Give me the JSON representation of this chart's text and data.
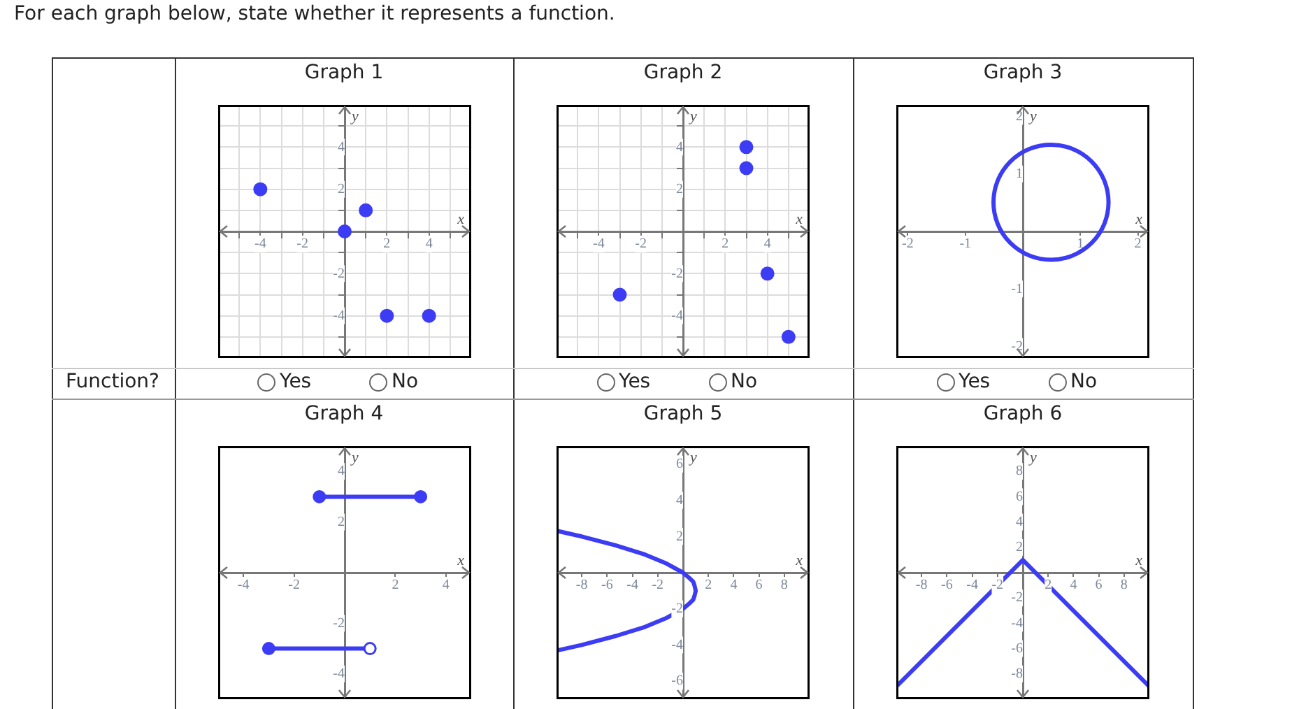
{
  "chart_data": [
    {
      "type": "scatter",
      "title": "Graph 1",
      "xlabel": "x",
      "ylabel": "y",
      "xlim": [
        -6,
        6
      ],
      "ylim": [
        -6,
        6
      ],
      "xticks": [
        {
          "value": -5,
          "label": null
        },
        -4,
        {
          "value": -3,
          "label": null
        },
        -2,
        {
          "value": -1,
          "label": null
        },
        {
          "value": 1,
          "label": null
        },
        2,
        {
          "value": 3,
          "label": null
        },
        4,
        {
          "value": 5,
          "label": null
        }
      ],
      "yticks": [
        {
          "value": -5,
          "label": null
        },
        -4,
        {
          "value": -3,
          "label": null
        },
        -2,
        {
          "value": -1,
          "label": null
        },
        {
          "value": 1,
          "label": null
        },
        2,
        {
          "value": 3,
          "label": null
        },
        4,
        {
          "value": 5,
          "label": null
        }
      ],
      "grid": true,
      "marker": "circle",
      "series": [
        {
          "color": "#3c3cf5",
          "x": [
            -4,
            0,
            1,
            2,
            4
          ],
          "values": [
            2,
            0,
            1,
            -4,
            -4
          ]
        }
      ],
      "annotations": [
        "For each graph below, state whether it represents a function.",
        "Function?",
        "Yes",
        "No"
      ]
    },
    {
      "type": "scatter",
      "title": "Graph 2",
      "xlabel": "x",
      "ylabel": "y",
      "xlim": [
        -6,
        6
      ],
      "ylim": [
        -6,
        6
      ],
      "xticks": [
        {
          "value": -5,
          "label": null
        },
        -4,
        {
          "value": -3,
          "label": null
        },
        -2,
        {
          "value": -1,
          "label": null
        },
        {
          "value": 1,
          "label": null
        },
        2,
        {
          "value": 3,
          "label": null
        },
        4,
        {
          "value": 5,
          "label": null
        }
      ],
      "yticks": [
        {
          "value": -5,
          "label": null
        },
        -4,
        {
          "value": -3,
          "label": null
        },
        -2,
        {
          "value": -1,
          "label": null
        },
        {
          "value": 1,
          "label": null
        },
        2,
        {
          "value": 3,
          "label": null
        },
        4,
        {
          "value": 5,
          "label": null
        }
      ],
      "grid": true,
      "marker": "circle",
      "series": [
        {
          "color": "#3c3cf5",
          "x": [
            -3,
            3,
            3,
            4,
            5
          ],
          "values": [
            -3,
            4,
            3,
            -2,
            -5
          ]
        }
      ],
      "annotations": [
        "Yes",
        "No"
      ]
    },
    {
      "type": "line",
      "title": "Graph 3",
      "xlabel": "x",
      "ylabel": "y",
      "xlim": [
        -2.2,
        2.2
      ],
      "ylim": [
        -2.2,
        2.2
      ],
      "xticks": [
        -2,
        -1,
        1,
        2
      ],
      "yticks": [
        -2,
        -1,
        1,
        2
      ],
      "annotations": [
        "Yes",
        "No"
      ]
    },
    {
      "type": "line",
      "title": "Graph 4",
      "xlabel": "x",
      "ylabel": "y",
      "xlim": [
        -5,
        5
      ],
      "ylim": [
        -5,
        5
      ],
      "xticks": [
        -4,
        -2,
        2,
        4
      ],
      "yticks": [
        -4,
        -2,
        2,
        4
      ],
      "marker": "circle",
      "series": [
        {
          "color": "#3c3cf5",
          "x": [
            -1,
            3
          ],
          "values": [
            3,
            3
          ]
        },
        {
          "color": "#3c3cf5",
          "colors": [
            "#3c3cf5",
            "#ffffff"
          ],
          "x": [
            -3,
            1
          ],
          "values": [
            -3,
            -3
          ]
        }
      ]
    },
    {
      "type": "line",
      "title": "Graph 5",
      "xlabel": "x",
      "ylabel": "y",
      "xlim": [
        -10,
        10
      ],
      "ylim": [
        -7,
        7
      ],
      "xticks": [
        -8,
        -6,
        -4,
        -2,
        2,
        4,
        6,
        8
      ],
      "yticks": [
        -6,
        -4,
        -2,
        2,
        4,
        6
      ],
      "marker": "none",
      "series": [
        {
          "color": "#3c3cf5",
          "x": [
            -9.9,
            -8,
            -5.3,
            -3,
            -1.3,
            0,
            0.5,
            0.8,
            0.9,
            1,
            0.9,
            0.8,
            0.5,
            0,
            -1.3,
            -3,
            -5.3,
            -8,
            -9.9
          ],
          "values": [
            2.3,
            2,
            1.5,
            1,
            0.5,
            0,
            -0.3,
            -0.5,
            -0.7,
            -1,
            -1.3,
            -1.5,
            -1.7,
            -2,
            -2.5,
            -3,
            -3.5,
            -4,
            -4.3
          ]
        }
      ]
    },
    {
      "type": "line",
      "title": "Graph 6",
      "xlabel": "x",
      "ylabel": "y",
      "xlim": [
        -10,
        10
      ],
      "ylim": [
        -10,
        10
      ],
      "xticks": [
        -8,
        -6,
        -4,
        -2,
        2,
        4,
        6,
        8
      ],
      "yticks": [
        -8,
        -6,
        -4,
        -2,
        2,
        4,
        6,
        8
      ],
      "marker": "none",
      "series": [
        {
          "color": "#3c3cf5",
          "x": [
            -10,
            0,
            10
          ],
          "values": [
            -9,
            1,
            -9
          ]
        }
      ]
    }
  ]
}
